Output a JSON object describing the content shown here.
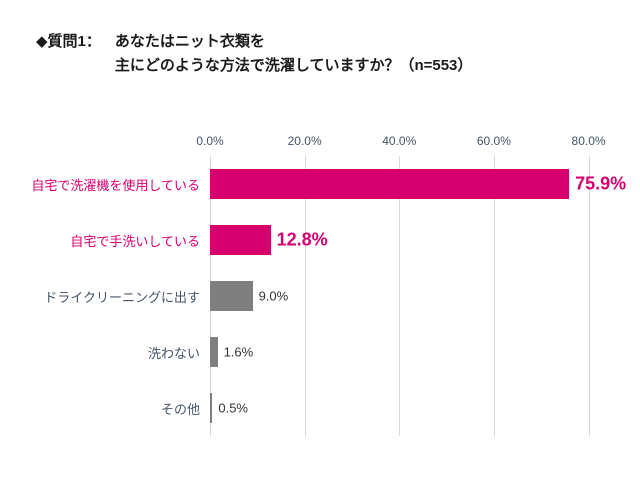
{
  "title": {
    "prefix": "◆質問1：",
    "line1": "あなたはニット衣類を",
    "line2": "主にどのような方法で洗濯していますか？（n=553）"
  },
  "colors": {
    "magenta": "#d6006f",
    "gray": "#7f7f7f",
    "axis_text": "#44546a",
    "grid": "#d9d9d9",
    "value_dark": "#333333"
  },
  "chart_data": {
    "type": "bar",
    "orientation": "horizontal",
    "title": "◆質問1： あなたはニット衣類を主にどのような方法で洗濯していますか？（n=553）",
    "categories": [
      "自宅で洗濯機を使用している",
      "自宅で手洗いしている",
      "ドライクリーニングに出す",
      "洗わない",
      "その他"
    ],
    "values": [
      75.9,
      12.8,
      9.0,
      1.6,
      0.5
    ],
    "value_labels": [
      "75.9%",
      "12.8%",
      "9.0%",
      "1.6%",
      "0.5%"
    ],
    "bar_colors": [
      "#d6006f",
      "#d6006f",
      "#7f7f7f",
      "#7f7f7f",
      "#7f7f7f"
    ],
    "category_colors": [
      "#d6006f",
      "#d6006f",
      "#44546a",
      "#44546a",
      "#44546a"
    ],
    "value_label_colors": [
      "#d6006f",
      "#d6006f",
      "#333333",
      "#333333",
      "#333333"
    ],
    "value_label_emphasis": [
      true,
      true,
      false,
      false,
      false
    ],
    "x_ticks": [
      "0.0%",
      "20.0%",
      "40.0%",
      "60.0%",
      "80.0%"
    ],
    "x_tick_values": [
      0,
      20,
      40,
      60,
      80
    ],
    "xlim": [
      0,
      82
    ],
    "grid": true,
    "legend": "none"
  }
}
